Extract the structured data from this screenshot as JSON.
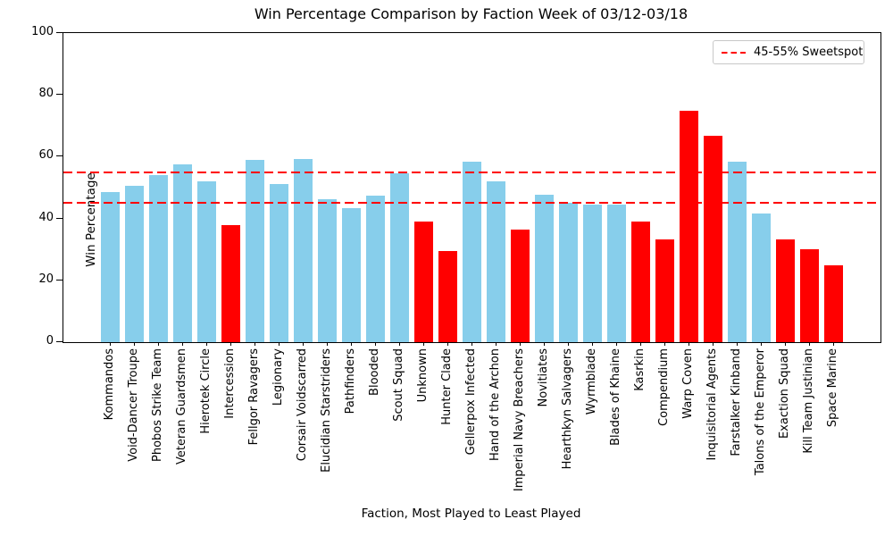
{
  "chart_data": {
    "type": "bar",
    "title": "Win Percentage Comparison by Faction Week of 03/12-03/18",
    "xlabel": "Faction, Most Played to Least Played",
    "ylabel": "Win Percentage",
    "ylim": [
      0,
      100
    ],
    "yticks": [
      0,
      20,
      40,
      60,
      80,
      100
    ],
    "grid": false,
    "legend": {
      "position": "upper right",
      "entries": [
        {
          "label": "45-55% Sweetspot",
          "style": "dashed",
          "color": "#ff0000"
        }
      ]
    },
    "reference_lines": [
      {
        "y": 45,
        "color": "#ff0000",
        "style": "dashed"
      },
      {
        "y": 55,
        "color": "#ff0000",
        "style": "dashed"
      }
    ],
    "palette": {
      "skyblue": "#87ceeb",
      "red": "#ff0000"
    },
    "categories": [
      "Kommandos",
      "Void-Dancer Troupe",
      "Phobos Strike Team",
      "Veteran Guardsmen",
      "Hierotek Circle",
      "Intercession",
      "Fellgor Ravagers",
      "Legionary",
      "Corsair Voidscarred",
      "Elucidian Starstriders",
      "Pathfinders",
      "Blooded",
      "Scout Squad",
      "Unknown",
      "Hunter Clade",
      "Gellerpox Infected",
      "Hand of the Archon",
      "Imperial Navy Breachers",
      "Novitiates",
      "Hearthkyn Salvagers",
      "Wyrmblade",
      "Blades of Khaine",
      "Kasrkin",
      "Compendium",
      "Warp Coven",
      "Inquisitorial Agents",
      "Farstalker Kinband",
      "Talons of the Emperor",
      "Exaction Squad",
      "Kill Team Justinian",
      "Space Marine"
    ],
    "values": [
      48.5,
      50.7,
      54,
      57.5,
      52,
      38,
      59,
      51.2,
      59.3,
      46.3,
      43.5,
      47.5,
      54.5,
      39,
      29.5,
      58.4,
      52,
      36.4,
      47.8,
      45,
      44.5,
      44.5,
      39,
      33.3,
      75,
      66.8,
      58.4,
      41.7,
      33.3,
      30.2,
      25
    ],
    "bar_colors": [
      "skyblue",
      "skyblue",
      "skyblue",
      "skyblue",
      "skyblue",
      "red",
      "skyblue",
      "skyblue",
      "skyblue",
      "skyblue",
      "skyblue",
      "skyblue",
      "skyblue",
      "red",
      "red",
      "skyblue",
      "skyblue",
      "red",
      "skyblue",
      "skyblue",
      "skyblue",
      "skyblue",
      "red",
      "red",
      "red",
      "red",
      "skyblue",
      "skyblue",
      "red",
      "red",
      "red"
    ]
  }
}
